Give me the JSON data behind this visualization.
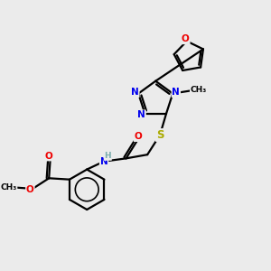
{
  "bg_color": "#ebebeb",
  "atom_colors": {
    "C": "#000000",
    "N": "#0000ee",
    "O": "#ee0000",
    "S": "#aaaa00",
    "H": "#7aadad"
  },
  "bond_color": "#000000",
  "lw": 1.6
}
